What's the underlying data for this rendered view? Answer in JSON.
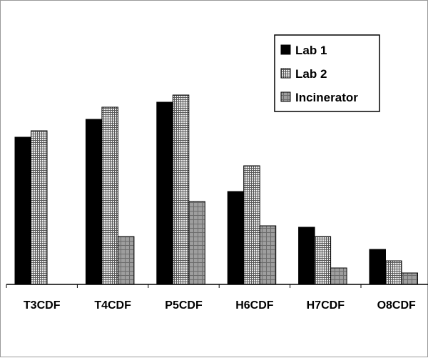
{
  "chart_data": {
    "type": "bar",
    "title": "",
    "xlabel": "",
    "ylabel": "",
    "categories": [
      "T3CDF",
      "T4CDF",
      "P5CDF",
      "H6CDF",
      "H7CDF",
      "O8CDF"
    ],
    "series": [
      {
        "name": "Lab 1",
        "values": [
          206,
          231,
          255,
          130,
          80,
          49
        ],
        "color": "#000000",
        "pattern": "solid"
      },
      {
        "name": "Lab 2",
        "values": [
          215,
          248,
          265,
          166,
          67,
          33
        ],
        "color": "#cfcfcf",
        "pattern": "fine-grid"
      },
      {
        "name": "Incinerator",
        "values": [
          0,
          67,
          116,
          82,
          23,
          16
        ],
        "color": "#a8a8a8",
        "pattern": "coarse-grid"
      }
    ],
    "ylim": [
      0,
      300
    ],
    "y_axis_visible": false,
    "grid": false,
    "legend_position": "top-right"
  }
}
